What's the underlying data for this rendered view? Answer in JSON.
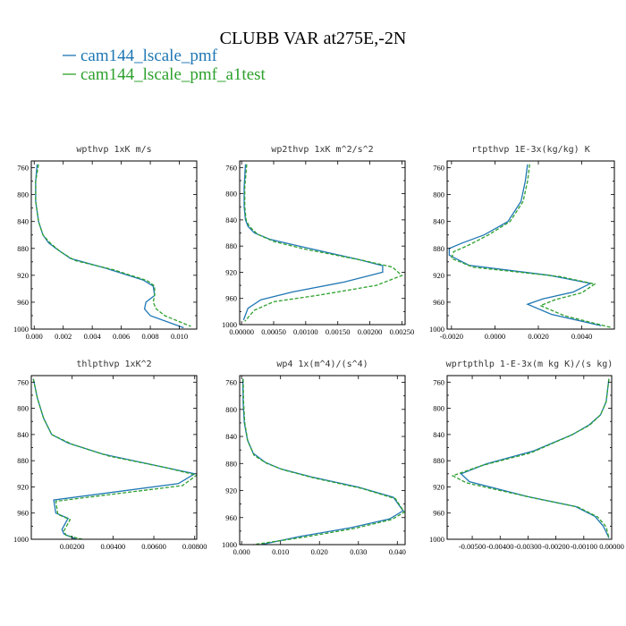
{
  "figure": {
    "title": "CLUBB VAR at275E,-2N",
    "legend": [
      {
        "label": "cam144_lscale_pmf",
        "color": "#1f77b4",
        "dash": "solid"
      },
      {
        "label": "cam144_lscale_pmf_a1test",
        "color": "#2ca02c",
        "dash": "dashed"
      }
    ]
  },
  "chart_data": [
    {
      "type": "line",
      "title": "wpthvp  1xK m/s",
      "xlim": [
        -0.0002,
        0.0112
      ],
      "ylim": [
        1000,
        750
      ],
      "xticks": [
        0.0,
        0.002,
        0.004,
        0.006,
        0.008,
        0.01
      ],
      "xtick_labels": [
        "0.000",
        "0.002",
        "0.004",
        "0.006",
        "0.008",
        "0.010"
      ],
      "yticks": [
        760,
        800,
        840,
        880,
        920,
        960,
        1000
      ],
      "series": [
        {
          "name": "cam144_lscale_pmf",
          "color": "#1f77b4",
          "x": [
            0.0002,
            0.0001,
            0.0001,
            0.0003,
            0.0006,
            0.001,
            0.0015,
            0.0025,
            0.005,
            0.0075,
            0.0082,
            0.0083,
            0.0077,
            0.0076,
            0.008,
            0.0103
          ],
          "y": [
            755,
            780,
            810,
            840,
            860,
            872,
            880,
            895,
            910,
            927,
            936,
            950,
            960,
            970,
            980,
            998
          ]
        },
        {
          "name": "cam144_lscale_pmf_a1test",
          "color": "#2ca02c",
          "dash": "dashed",
          "x": [
            0.0003,
            0.0001,
            0.0001,
            0.0003,
            0.0006,
            0.0011,
            0.0018,
            0.0028,
            0.0055,
            0.0078,
            0.0083,
            0.0083,
            0.0082,
            0.0084,
            0.009,
            0.0108
          ],
          "y": [
            755,
            780,
            810,
            840,
            860,
            872,
            885,
            898,
            912,
            928,
            936,
            950,
            960,
            970,
            980,
            996
          ]
        }
      ]
    },
    {
      "type": "line",
      "title": "wp2thvp  1xK m^2/s^2",
      "xlim": [
        -3e-05,
        0.00255
      ],
      "ylim": [
        1000,
        750
      ],
      "xticks": [
        0.0,
        0.0005,
        0.001,
        0.0015,
        0.002,
        0.0025
      ],
      "xtick_labels": [
        "0.00000",
        "0.00050",
        "0.00100",
        "0.00150",
        "0.00200",
        "0.00250"
      ],
      "yticks": [
        760,
        800,
        840,
        880,
        920,
        960,
        1000
      ],
      "series": [
        {
          "name": "cam144_lscale_pmf",
          "color": "#1f77b4",
          "x": [
            6e-05,
            4e-05,
            4e-05,
            6e-05,
            0.0001,
            0.0002,
            0.00045,
            0.0009,
            0.0018,
            0.0022,
            0.0022,
            0.0016,
            0.0008,
            0.0003,
            0.0001,
            3e-05
          ],
          "y": [
            755,
            790,
            820,
            840,
            850,
            860,
            870,
            880,
            900,
            910,
            920,
            935,
            950,
            962,
            975,
            993
          ]
        },
        {
          "name": "cam144_lscale_pmf_a1test",
          "color": "#2ca02c",
          "dash": "dashed",
          "x": [
            8e-05,
            5e-05,
            5e-05,
            7e-05,
            0.00012,
            0.00025,
            0.0005,
            0.001,
            0.0019,
            0.00235,
            0.0025,
            0.0021,
            0.0012,
            0.0005,
            0.0002,
            5e-05
          ],
          "y": [
            755,
            790,
            820,
            840,
            850,
            862,
            873,
            885,
            902,
            912,
            925,
            940,
            955,
            965,
            978,
            995
          ]
        }
      ]
    },
    {
      "type": "line",
      "title": "rtpthvp  1E-3x(kg/kg) K",
      "xlim": [
        -0.0022,
        0.0055
      ],
      "ylim": [
        1000,
        750
      ],
      "xticks": [
        -0.002,
        0.0,
        0.002,
        0.004
      ],
      "xtick_labels": [
        "-0.0020",
        "0.0000",
        "0.0020",
        "0.0040"
      ],
      "yticks": [
        760,
        800,
        840,
        880,
        920,
        960,
        1000
      ],
      "series": [
        {
          "name": "cam144_lscale_pmf",
          "color": "#1f77b4",
          "x": [
            0.0015,
            0.0014,
            0.0012,
            0.0006,
            -0.0005,
            -0.0015,
            -0.0021,
            -0.0021,
            -0.0012,
            0.0025,
            0.0044,
            0.0036,
            0.0022,
            0.0015,
            0.0026,
            0.0049
          ],
          "y": [
            755,
            780,
            810,
            840,
            860,
            872,
            880,
            890,
            905,
            920,
            932,
            945,
            955,
            963,
            978,
            995
          ]
        },
        {
          "name": "cam144_lscale_pmf_a1test",
          "color": "#2ca02c",
          "dash": "dashed",
          "x": [
            0.0016,
            0.0015,
            0.0013,
            0.0007,
            -0.0003,
            -0.0012,
            -0.0019,
            -0.002,
            -0.001,
            0.003,
            0.0046,
            0.004,
            0.0028,
            0.0021,
            0.0032,
            0.0054
          ],
          "y": [
            755,
            780,
            810,
            840,
            860,
            875,
            885,
            895,
            908,
            922,
            933,
            946,
            956,
            965,
            980,
            998
          ]
        }
      ]
    },
    {
      "type": "line",
      "title": "thlpthvp  1xK^2",
      "xlim": [
        0.0,
        0.0081
      ],
      "ylim": [
        1000,
        750
      ],
      "xticks": [
        0.002,
        0.004,
        0.006,
        0.008
      ],
      "xtick_labels": [
        "0.00200",
        "0.00400",
        "0.00600",
        "0.00800"
      ],
      "yticks": [
        760,
        800,
        840,
        880,
        920,
        960,
        1000
      ],
      "series": [
        {
          "name": "cam144_lscale_pmf",
          "color": "#1f77b4",
          "x": [
            0.0001,
            0.0003,
            0.0006,
            0.001,
            0.0018,
            0.0035,
            0.0062,
            0.008,
            0.0072,
            0.0011,
            0.0012,
            0.0018,
            0.0015,
            0.0016,
            0.0022
          ],
          "y": [
            755,
            785,
            815,
            840,
            853,
            870,
            888,
            900,
            915,
            940,
            960,
            968,
            985,
            992,
            1000
          ]
        },
        {
          "name": "cam144_lscale_pmf_a1test",
          "color": "#2ca02c",
          "dash": "dashed",
          "x": [
            0.0001,
            0.0003,
            0.0006,
            0.001,
            0.002,
            0.0038,
            0.0065,
            0.0081,
            0.0074,
            0.0012,
            0.0013,
            0.0019,
            0.0016,
            0.0017,
            0.0025
          ],
          "y": [
            755,
            785,
            815,
            840,
            855,
            873,
            890,
            902,
            918,
            942,
            962,
            970,
            987,
            994,
            1000
          ]
        }
      ]
    },
    {
      "type": "line",
      "title": "wp4  1x(m^4)/(s^4)",
      "xlim": [
        -0.0005,
        0.042
      ],
      "ylim": [
        1000,
        750
      ],
      "xticks": [
        0.0,
        0.01,
        0.02,
        0.03,
        0.04
      ],
      "xtick_labels": [
        "0.000",
        "0.010",
        "0.020",
        "0.030",
        "0.040"
      ],
      "yticks": [
        760,
        800,
        840,
        880,
        920,
        960,
        1000
      ],
      "series": [
        {
          "name": "cam144_lscale_pmf",
          "color": "#1f77b4",
          "x": [
            0.0003,
            0.0004,
            0.0007,
            0.0015,
            0.003,
            0.006,
            0.01,
            0.018,
            0.03,
            0.039,
            0.0415,
            0.038,
            0.028,
            0.015,
            0.005
          ],
          "y": [
            755,
            790,
            820,
            845,
            865,
            878,
            888,
            900,
            915,
            930,
            950,
            962,
            975,
            988,
            1000
          ]
        },
        {
          "name": "cam144_lscale_pmf_a1test",
          "color": "#2ca02c",
          "dash": "dashed",
          "x": [
            0.0004,
            0.0005,
            0.0008,
            0.0016,
            0.0032,
            0.0065,
            0.011,
            0.019,
            0.031,
            0.0395,
            0.0418,
            0.0385,
            0.029,
            0.016,
            0.003
          ],
          "y": [
            755,
            790,
            820,
            847,
            868,
            880,
            890,
            902,
            917,
            932,
            952,
            963,
            976,
            989,
            1000
          ]
        }
      ]
    },
    {
      "type": "line",
      "title": "wprtpthlp  1-E-3x(m kg K)/(s kg)",
      "xlim": [
        -0.0059,
        0.0
      ],
      "ylim": [
        1000,
        750
      ],
      "xticks": [
        -0.005,
        -0.004,
        -0.003,
        -0.002,
        -0.001,
        0.0
      ],
      "xtick_labels": [
        "-0.00500",
        "-0.00400",
        "-0.00300",
        "-0.00200",
        "-0.00100",
        "0.00000"
      ],
      "yticks": [
        760,
        800,
        840,
        880,
        920,
        960,
        1000
      ],
      "series": [
        {
          "name": "cam144_lscale_pmf",
          "color": "#1f77b4",
          "x": [
            -0.0001,
            -0.0002,
            -0.0004,
            -0.0008,
            -0.0014,
            -0.0028,
            -0.0045,
            -0.0054,
            -0.0051,
            -0.003,
            -0.0013,
            -0.0006,
            -0.0003,
            -0.0001
          ],
          "y": [
            755,
            790,
            810,
            825,
            840,
            865,
            885,
            900,
            912,
            935,
            950,
            965,
            980,
            998
          ]
        },
        {
          "name": "cam144_lscale_pmf_a1test",
          "color": "#2ca02c",
          "dash": "dashed",
          "x": [
            -0.0001,
            -0.0002,
            -0.0004,
            -0.0008,
            -0.0015,
            -0.0029,
            -0.0047,
            -0.0057,
            -0.0052,
            -0.0029,
            -0.0012,
            -0.0005,
            -0.0002,
            -0.0001
          ],
          "y": [
            755,
            790,
            810,
            826,
            842,
            868,
            888,
            903,
            914,
            936,
            951,
            966,
            981,
            998
          ]
        }
      ]
    }
  ]
}
